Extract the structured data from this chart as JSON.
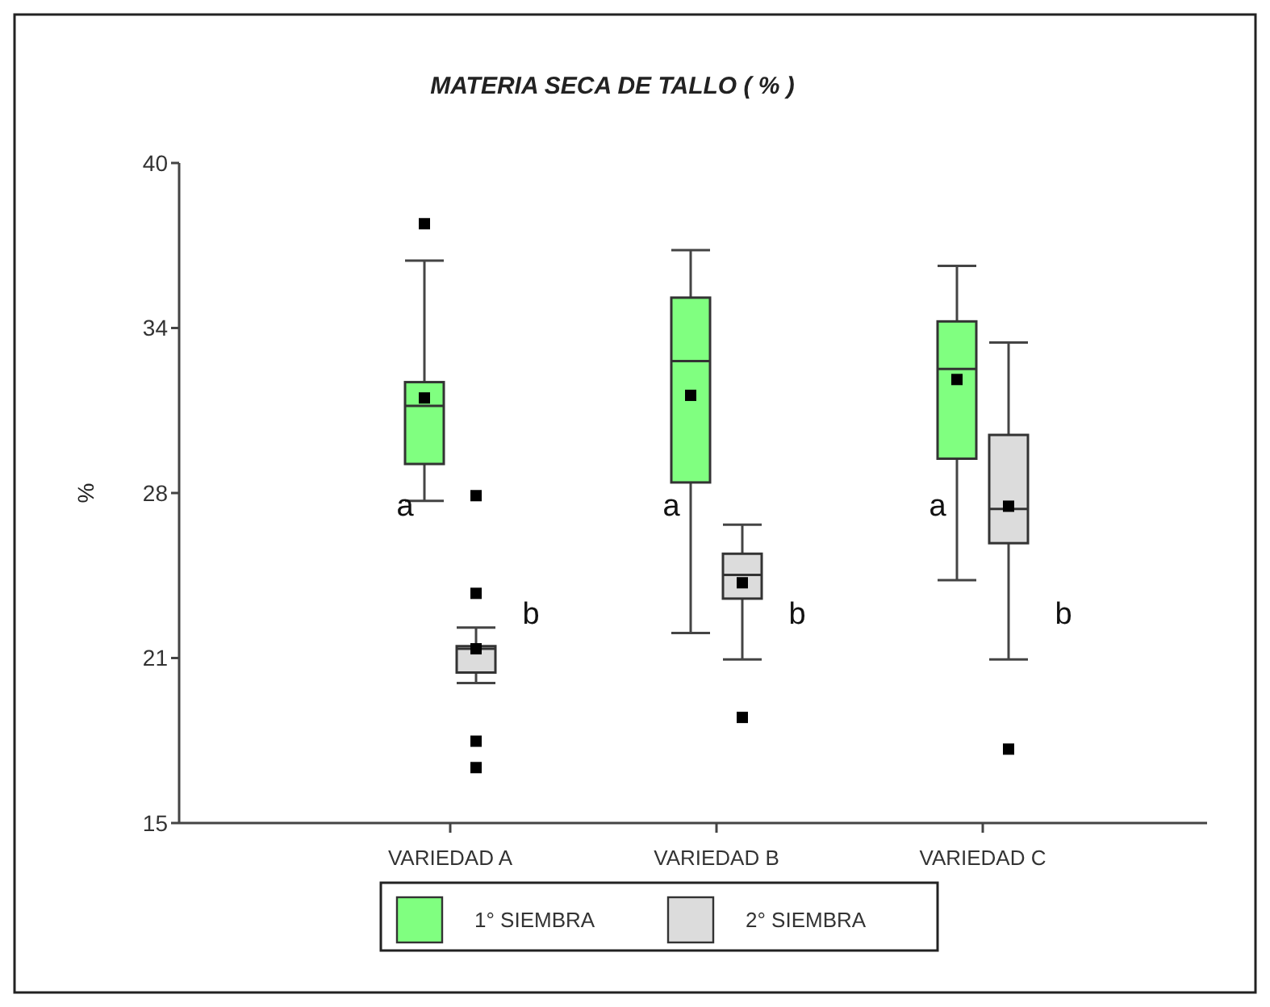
{
  "chart_data": {
    "type": "box",
    "title": "MATERIA SECA DE TALLO ( % )",
    "ylabel": "%",
    "categories": [
      "VARIEDAD A",
      "VARIEDAD B",
      "VARIEDAD C"
    ],
    "ylim": [
      15,
      40
    ],
    "yticks": [
      15,
      {
        "value": 21.25,
        "label": "21"
      },
      {
        "value": 27.5,
        "label": "28"
      },
      {
        "value": 33.75,
        "label": "34"
      },
      40
    ],
    "series": [
      {
        "name": "1° SIEMBRA",
        "color": "#80ff80",
        "boxes": [
          {
            "low": 27.2,
            "q1": 28.6,
            "median": 30.8,
            "q3": 31.7,
            "high": 36.3,
            "mean": 31.1,
            "outliers": [
              37.7
            ]
          },
          {
            "low": 22.2,
            "q1": 27.9,
            "median": 32.5,
            "q3": 34.9,
            "high": 36.7,
            "mean": 31.2
          },
          {
            "low": 24.2,
            "q1": 28.8,
            "median": 32.2,
            "q3": 34.0,
            "high": 36.1,
            "mean": 31.8
          }
        ]
      },
      {
        "name": "2° SIEMBRA",
        "color": "#dcdcdc",
        "boxes": [
          {
            "low": 20.3,
            "q1": 20.7,
            "median": 21.6,
            "q3": 21.7,
            "high": 22.4,
            "mean": 21.6,
            "outliers": [
              27.4,
              23.7,
              18.1,
              17.1
            ]
          },
          {
            "low": 21.2,
            "q1": 23.5,
            "median": 24.4,
            "q3": 25.2,
            "high": 26.3,
            "mean": 24.1,
            "outliers": [
              19.0
            ]
          },
          {
            "low": 21.2,
            "q1": 25.6,
            "median": 26.9,
            "q3": 29.7,
            "high": 33.2,
            "mean": 27.0,
            "outliers": [
              17.8
            ]
          }
        ]
      }
    ],
    "annotations": [
      "a",
      "b",
      "a",
      "b",
      "a",
      "b"
    ],
    "legend": "bottom",
    "grid": false,
    "marker": "square"
  }
}
